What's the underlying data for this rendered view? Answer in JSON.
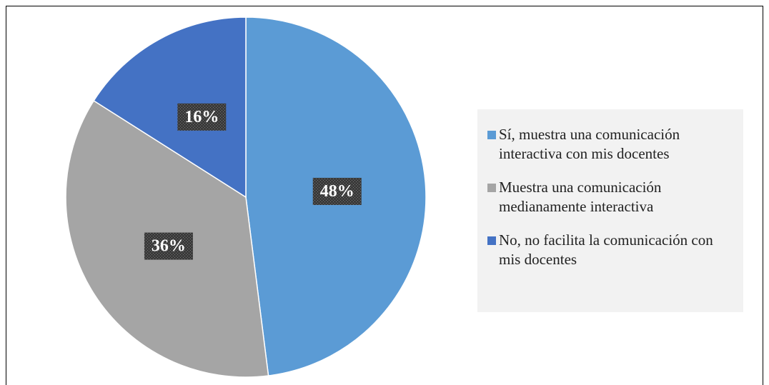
{
  "chart_data": {
    "type": "pie",
    "categories": [
      "Sí, muestra una comunicación interactiva con mis docentes",
      "Muestra una comunicación medianamente interactiva",
      "No, no facilita la comunicación con mis docentes"
    ],
    "values": [
      48,
      36,
      16
    ],
    "value_labels": [
      "48%",
      "36%",
      "16%"
    ],
    "colors": [
      "#5b9bd5",
      "#a5a5a5",
      "#4472c4"
    ],
    "legend": "right"
  }
}
